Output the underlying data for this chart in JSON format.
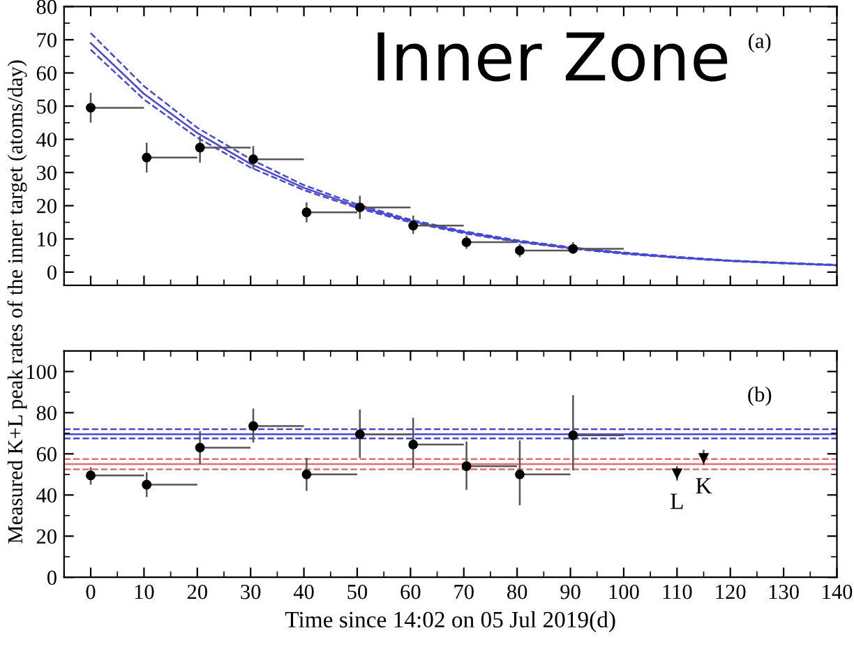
{
  "chart_data": [
    {
      "type": "scatter",
      "ylabel": "Measured K+L peak rates of the inner target (atoms/day)",
      "annotations": [
        "Inner Zone",
        "(a)"
      ],
      "xlim": [
        -5,
        140
      ],
      "ylim": [
        -4,
        80
      ],
      "yticks": [
        0,
        10,
        20,
        30,
        40,
        50,
        60,
        70,
        80
      ],
      "xticks": [
        {
          "value": 0,
          "label": null
        },
        {
          "value": 10,
          "label": null
        },
        {
          "value": 20,
          "label": null
        },
        {
          "value": 30,
          "label": null
        },
        {
          "value": 40,
          "label": null
        },
        {
          "value": 50,
          "label": null
        },
        {
          "value": 60,
          "label": null
        },
        {
          "value": 70,
          "label": null
        },
        {
          "value": 80,
          "label": null
        },
        {
          "value": 90,
          "label": null
        },
        {
          "value": 100,
          "label": null
        },
        {
          "value": 110,
          "label": null
        },
        {
          "value": 120,
          "label": null
        },
        {
          "value": 130,
          "label": null
        },
        {
          "value": 140,
          "label": null
        }
      ],
      "tick_labels": "y",
      "grid": false,
      "legend": false,
      "series": [
        {
          "color": "#000000",
          "marker": "circle",
          "x": [
            0,
            10.5,
            20.5,
            30.5,
            40.5,
            50.5,
            60.5,
            70.5,
            80.5,
            90.5
          ],
          "values": [
            49.5,
            34.5,
            37.5,
            34,
            18,
            19.5,
            14,
            9,
            6.5,
            7
          ],
          "errors": [
            [
              45,
              54
            ],
            [
              30,
              39
            ],
            [
              33,
              41
            ],
            [
              31,
              38
            ],
            [
              15,
              21
            ],
            [
              16,
              23
            ],
            [
              11.5,
              17
            ],
            [
              7,
              11
            ],
            [
              4.5,
              8.5
            ],
            [
              5.5,
              9
            ]
          ],
          "xerrors": [
            [
              0,
              10
            ],
            [
              10.5,
              20
            ],
            [
              20.5,
              30
            ],
            [
              30.5,
              40
            ],
            [
              40.5,
              50
            ],
            [
              50.5,
              60
            ],
            [
              60.5,
              70
            ],
            [
              70.5,
              80
            ],
            [
              80.5,
              90
            ],
            [
              90.5,
              100
            ]
          ]
        },
        {
          "type": "line",
          "color": "#4848d0",
          "marker": "none",
          "line_style": "solid",
          "x": [
            0,
            10,
            20,
            30,
            40,
            50,
            60,
            70,
            80,
            90,
            100,
            110,
            120,
            130,
            140
          ],
          "values": [
            69,
            53.7,
            41.9,
            32.6,
            25.4,
            19.8,
            15.4,
            12,
            9.3,
            7.3,
            5.7,
            4.4,
            3.4,
            2.7,
            2.1
          ]
        },
        {
          "type": "line",
          "color": "#4848d0",
          "marker": "none",
          "line_style": "dashed",
          "x": [
            0,
            10,
            20,
            30,
            40,
            50,
            60,
            70,
            80,
            90,
            100,
            110,
            120,
            130,
            140
          ],
          "values": [
            67,
            52,
            40.5,
            31.5,
            24.7,
            19.3,
            15,
            11.7,
            9.1,
            7.1,
            5.5,
            4.3,
            3.3,
            2.6,
            2
          ]
        },
        {
          "type": "line",
          "color": "#4848d0",
          "marker": "none",
          "line_style": "dashed",
          "x": [
            0,
            10,
            20,
            30,
            40,
            50,
            60,
            70,
            80,
            90,
            100,
            110,
            120,
            130,
            140
          ],
          "values": [
            72,
            56,
            43.5,
            34,
            26.2,
            20.4,
            15.8,
            12.3,
            9.6,
            7.5,
            5.9,
            4.6,
            3.5,
            2.8,
            2.2
          ]
        }
      ]
    },
    {
      "type": "scatter",
      "xlabel": "Time since 14:02 on 05 Jul 2019(d)",
      "annotations": [
        "(b)",
        "L",
        "K"
      ],
      "xlim": [
        -5,
        140
      ],
      "ylim": [
        0,
        110
      ],
      "yticks": [
        0,
        20,
        40,
        60,
        80,
        100
      ],
      "xticks": [
        0,
        10,
        20,
        30,
        40,
        50,
        60,
        70,
        80,
        90,
        100,
        110,
        120,
        130,
        140
      ],
      "grid": false,
      "legend": false,
      "series": [
        {
          "color": "#000000",
          "marker": "circle",
          "x": [
            0,
            10.5,
            20.5,
            30.5,
            40.5,
            50.5,
            60.5,
            70.5,
            80.5,
            90.5
          ],
          "values": [
            49.5,
            45,
            63,
            73.5,
            50,
            69.5,
            64.5,
            54,
            50,
            69
          ],
          "errors": [
            [
              45,
              53.5
            ],
            [
              39,
              51
            ],
            [
              55,
              71
            ],
            [
              65.5,
              82
            ],
            [
              42,
              58
            ],
            [
              58,
              81.5
            ],
            [
              53,
              77.5
            ],
            [
              42.5,
              66
            ],
            [
              35,
              66.5
            ],
            [
              52,
              88.5
            ]
          ],
          "xerrors": [
            [
              0,
              10
            ],
            [
              10.5,
              20
            ],
            [
              20.5,
              30
            ],
            [
              30.5,
              40
            ],
            [
              40.5,
              50
            ],
            [
              50.5,
              60
            ],
            [
              60.5,
              70
            ],
            [
              70.5,
              80
            ],
            [
              80.5,
              90
            ],
            [
              90.5,
              100
            ]
          ]
        },
        {
          "color": "#000000",
          "marker": "triangle",
          "x": [
            110,
            115
          ],
          "values": [
            50.5,
            58
          ],
          "errors": [
            [
              47,
              54
            ],
            [
              54.5,
              62
            ]
          ]
        }
      ],
      "ref_lines": [
        {
          "axis": "y",
          "value": 69.5,
          "color": "#4848d0",
          "line_style": "solid"
        },
        {
          "axis": "y",
          "value": 72,
          "color": "#4848d0",
          "line_style": "dashed"
        },
        {
          "axis": "y",
          "value": 67.5,
          "color": "#4848d0",
          "line_style": "dashed"
        },
        {
          "axis": "y",
          "value": 55,
          "color": "#e07070",
          "line_style": "solid"
        },
        {
          "axis": "y",
          "value": 57.5,
          "color": "#e07070",
          "line_style": "dashed"
        },
        {
          "axis": "y",
          "value": 52.5,
          "color": "#e07070",
          "line_style": "dashed"
        }
      ]
    }
  ]
}
